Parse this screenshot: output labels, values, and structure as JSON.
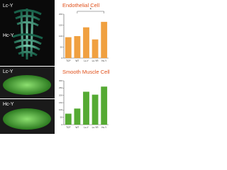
{
  "panels": [
    {
      "label": "Lc-Y"
    },
    {
      "label": "Hc-Y"
    },
    {
      "label": "Lc-Y"
    },
    {
      "label": "Hc-Y"
    }
  ],
  "chart_data": [
    {
      "type": "bar",
      "title": "Endothelial Cell",
      "categories": [
        "TCP",
        "WT",
        "Lc-Y",
        "Lc-YR",
        "Hc-Y"
      ],
      "values": [
        95,
        100,
        140,
        85,
        165
      ],
      "color": "#f0a040",
      "title_color": "#e0501a",
      "ylim": [
        0,
        200
      ],
      "yticks": [
        0,
        50,
        100,
        150,
        200
      ],
      "annotation": "*"
    },
    {
      "type": "bar",
      "title": "Smooth Muscle Cell",
      "categories": [
        "TCP",
        "WT",
        "Lc-Y",
        "Lc-YR",
        "Hc-Y"
      ],
      "values": [
        75,
        110,
        225,
        205,
        260
      ],
      "color": "#55aa33",
      "title_color": "#e0501a",
      "ylim": [
        0,
        300
      ],
      "yticks": [
        0,
        50,
        100,
        150,
        200,
        250,
        300
      ]
    }
  ]
}
